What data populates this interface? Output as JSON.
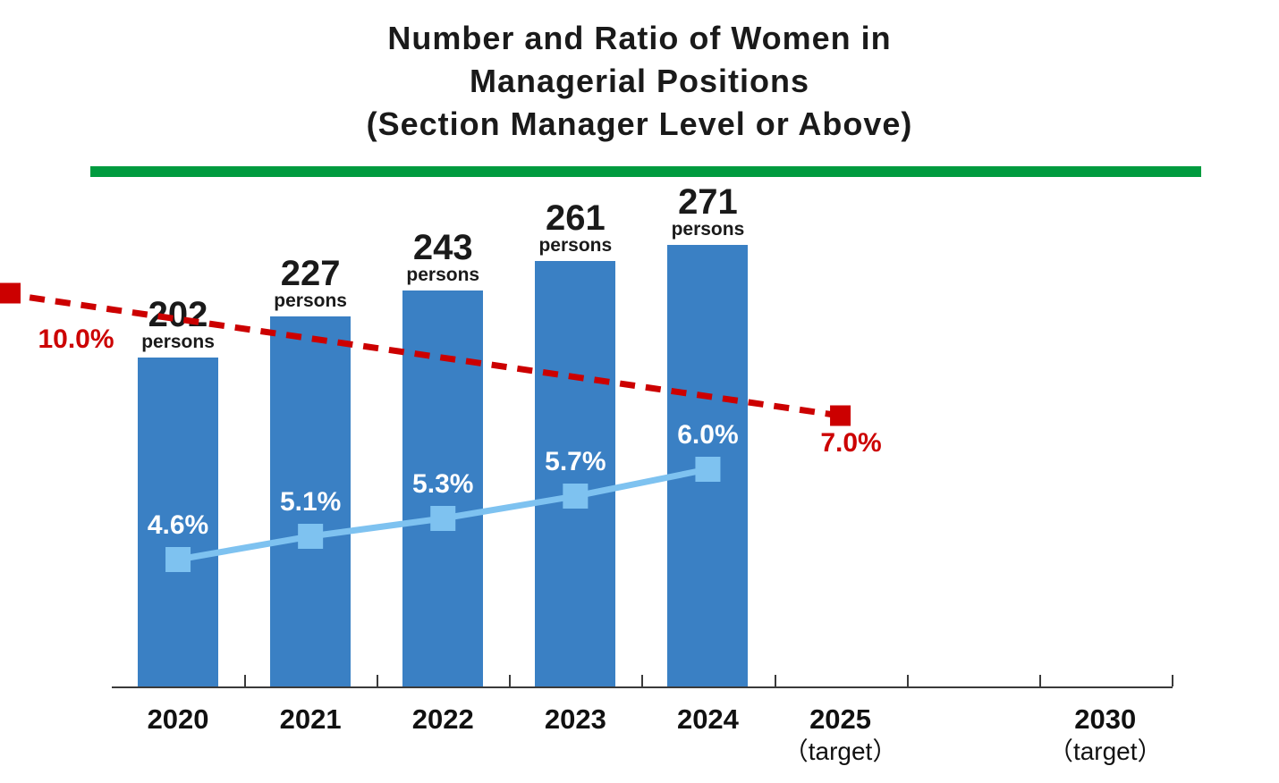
{
  "title": {
    "line1": "Number and Ratio of Women in",
    "line2": "Managerial Positions",
    "line3": "(Section Manager Level or Above)"
  },
  "colors": {
    "divider_green": "#009B3F",
    "bar_blue": "#3A80C4",
    "actual_line_blue": "#7EC2F0",
    "target_line_red": "#CC0000",
    "text_dark": "#1A1A1A",
    "pct_label_white": "#FFFFFF",
    "axis_gray": "#3A3A3A"
  },
  "chart_data": {
    "type": "bar",
    "subtype": "bar + line combo, line continues as dashed target",
    "title": "Number and Ratio of Women in Managerial Positions (Section Manager Level or Above)",
    "xlabel": "",
    "ylabel": "",
    "gridlines": false,
    "legend": "none",
    "x_categories": [
      {
        "label": "2020",
        "note": ""
      },
      {
        "label": "2021",
        "note": ""
      },
      {
        "label": "2022",
        "note": ""
      },
      {
        "label": "2023",
        "note": ""
      },
      {
        "label": "2024",
        "note": ""
      },
      {
        "label": "2025",
        "note": "（target）"
      },
      {
        "label": "2030",
        "note": "（target）"
      }
    ],
    "bar_series": {
      "unit_label": "persons",
      "categories": [
        "2020",
        "2021",
        "2022",
        "2023",
        "2024"
      ],
      "values": [
        202,
        227,
        243,
        261,
        271
      ],
      "color": "#3A80C4"
    },
    "actual_ratio_line": {
      "style": "solid, square markers",
      "categories": [
        "2020",
        "2021",
        "2022",
        "2023",
        "2024"
      ],
      "values_pct": [
        4.6,
        5.1,
        5.3,
        5.7,
        6.0
      ],
      "color": "#7EC2F0",
      "label_color": "#FFFFFF"
    },
    "target_ratio_line": {
      "style": "dashed, square markers",
      "categories": [
        "2025",
        "2030"
      ],
      "values_pct": [
        7.0,
        10.0
      ],
      "color": "#CC0000",
      "label_color": "#CC0000"
    }
  }
}
